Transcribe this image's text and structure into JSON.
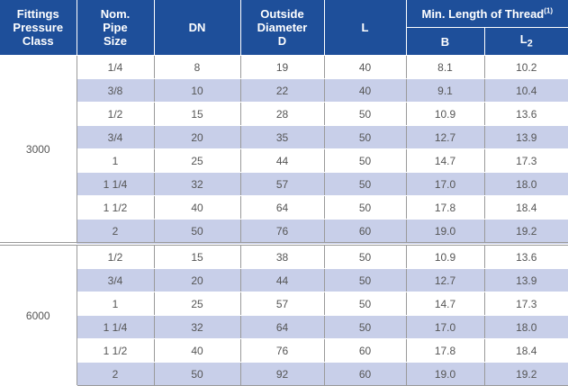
{
  "headers": {
    "class": [
      "Fittings",
      "Pressure",
      "Class"
    ],
    "size": [
      "Nom.",
      "Pipe",
      "Size"
    ],
    "dn": "DN",
    "od": [
      "Outside",
      "Diameter",
      "D"
    ],
    "l": "L",
    "thread": "Min. Length of Thread",
    "thread_note": "(1)",
    "b": "B",
    "l2_letter": "L",
    "l2_sub": "2"
  },
  "groups": [
    {
      "class": "3000",
      "rows": [
        {
          "size": "1/4",
          "dn": "8",
          "od": "19",
          "l": "40",
          "b": "8.1",
          "l2": "10.2"
        },
        {
          "size": "3/8",
          "dn": "10",
          "od": "22",
          "l": "40",
          "b": "9.1",
          "l2": "10.4"
        },
        {
          "size": "1/2",
          "dn": "15",
          "od": "28",
          "l": "50",
          "b": "10.9",
          "l2": "13.6"
        },
        {
          "size": "3/4",
          "dn": "20",
          "od": "35",
          "l": "50",
          "b": "12.7",
          "l2": "13.9"
        },
        {
          "size": "1",
          "dn": "25",
          "od": "44",
          "l": "50",
          "b": "14.7",
          "l2": "17.3"
        },
        {
          "size": "1 1/4",
          "dn": "32",
          "od": "57",
          "l": "50",
          "b": "17.0",
          "l2": "18.0"
        },
        {
          "size": "1 1/2",
          "dn": "40",
          "od": "64",
          "l": "50",
          "b": "17.8",
          "l2": "18.4"
        },
        {
          "size": "2",
          "dn": "50",
          "od": "76",
          "l": "60",
          "b": "19.0",
          "l2": "19.2"
        }
      ]
    },
    {
      "class": "6000",
      "rows": [
        {
          "size": "1/2",
          "dn": "15",
          "od": "38",
          "l": "50",
          "b": "10.9",
          "l2": "13.6"
        },
        {
          "size": "3/4",
          "dn": "20",
          "od": "44",
          "l": "50",
          "b": "12.7",
          "l2": "13.9"
        },
        {
          "size": "1",
          "dn": "25",
          "od": "57",
          "l": "50",
          "b": "14.7",
          "l2": "17.3"
        },
        {
          "size": "1 1/4",
          "dn": "32",
          "od": "64",
          "l": "50",
          "b": "17.0",
          "l2": "18.0"
        },
        {
          "size": "1 1/2",
          "dn": "40",
          "od": "76",
          "l": "60",
          "b": "17.8",
          "l2": "18.4"
        },
        {
          "size": "2",
          "dn": "50",
          "od": "92",
          "l": "60",
          "b": "19.0",
          "l2": "19.2"
        }
      ]
    }
  ]
}
